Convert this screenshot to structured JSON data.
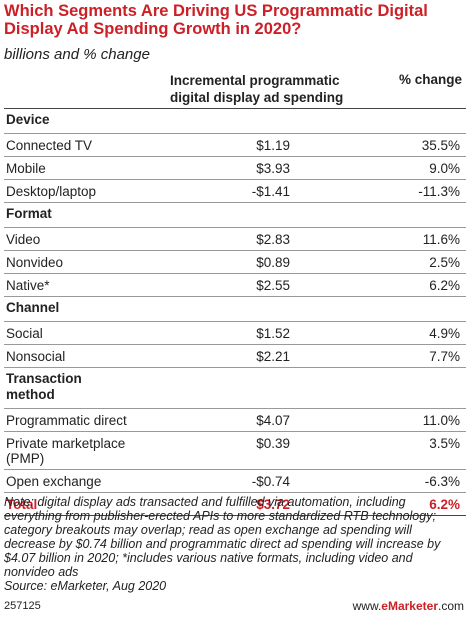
{
  "chart_data": {
    "type": "table",
    "title": "Which Segments Are Driving US Programmatic Digital Display Ad Spending Growth in 2020?",
    "subtitle": "billions and % change",
    "columns": [
      "Incremental programmatic digital display ad spending",
      "% change"
    ],
    "sections": [
      {
        "name": "Device",
        "rows": [
          {
            "label": "Connected TV",
            "amount": "$1.19",
            "pct": "35.5%"
          },
          {
            "label": "Mobile",
            "amount": "$3.93",
            "pct": "9.0%"
          },
          {
            "label": "Desktop/laptop",
            "amount": "-$1.41",
            "pct": "-11.3%"
          }
        ]
      },
      {
        "name": "Format",
        "rows": [
          {
            "label": "Video",
            "amount": "$2.83",
            "pct": "11.6%"
          },
          {
            "label": "Nonvideo",
            "amount": "$0.89",
            "pct": "2.5%"
          },
          {
            "label": "Native*",
            "amount": "$2.55",
            "pct": "6.2%"
          }
        ]
      },
      {
        "name": "Channel",
        "rows": [
          {
            "label": "Social",
            "amount": "$1.52",
            "pct": "4.9%"
          },
          {
            "label": "Nonsocial",
            "amount": "$2.21",
            "pct": "7.7%"
          }
        ]
      },
      {
        "name": "Transaction method",
        "name_lines": [
          "Transaction",
          "method"
        ],
        "rows": [
          {
            "label": "Programmatic direct",
            "amount": "$4.07",
            "pct": "11.0%"
          },
          {
            "label": "Private marketplace (PMP)",
            "label_lines": [
              "Private marketplace",
              "(PMP)"
            ],
            "amount": "$0.39",
            "pct": "3.5%"
          },
          {
            "label": "Open exchange",
            "amount": "-$0.74",
            "pct": "-6.3%"
          }
        ]
      }
    ],
    "total": {
      "label": "Total",
      "amount": "$3.72",
      "pct": "6.2%"
    }
  },
  "header": {
    "title_line1": "Which Segments Are Driving US Programmatic Digital",
    "title_line2": "Display Ad Spending Growth in 2020?",
    "subtitle": "billions and % change",
    "col_amount_line1": "Incremental programmatic",
    "col_amount_line2": "digital display ad spending",
    "col_pct": "% change"
  },
  "note": "Note: digital display ads transacted and fulfilled via automation, including everything from publisher-erected APIs to more standardized RTB technology; category breakouts may overlap; read as open exchange ad spending will decrease by $0.74 billion and programmatic direct ad spending will increase by $4.07 billion in 2020; *includes various native formats, including video and nonvideo ads",
  "source": "Source: eMarketer, Aug 2020",
  "footer": {
    "chart_id": "257125",
    "brand_prefix": "www.",
    "brand_name": "eMarketer",
    "brand_suffix": ".com"
  }
}
